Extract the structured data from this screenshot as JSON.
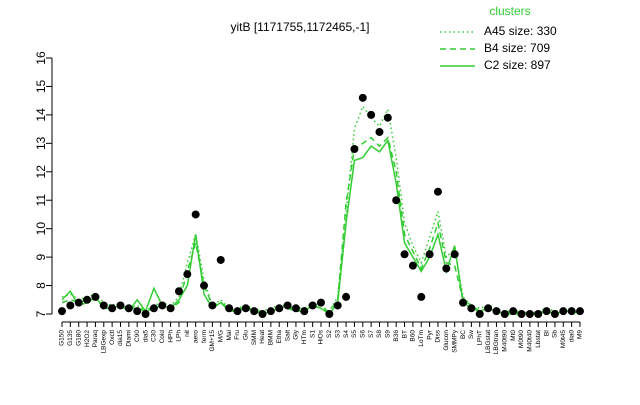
{
  "chart_data": {
    "type": "line",
    "title": "yitB [1171755,1172465,-1]",
    "legend_title": "clusters",
    "legend_position": "top-right",
    "categories": [
      "G150",
      "G135",
      "G180",
      "H2O2",
      "Paraq",
      "LBGexp",
      "Oxctl",
      "dia15",
      "Diami",
      "C90",
      "dia5",
      "C30",
      "Cold",
      "HPh",
      "LPh",
      "nit",
      "aero",
      "ferm",
      "GM+15",
      "M/G",
      "Mal",
      "Fru",
      "Glu",
      "SMM",
      "Heat",
      "BMM",
      "Etha",
      "Salt",
      "Gly",
      "HTm",
      "S1",
      "HiOs",
      "S2",
      "S3",
      "S4",
      "S5",
      "S6",
      "S7",
      "S8",
      "S9",
      "B36",
      "BT",
      "B60",
      "LoTm",
      "Pyr",
      "Diss",
      "Glucon",
      "SMMPy",
      "BC",
      "Sw",
      "LPhT",
      "LBGstat",
      "LBGtran",
      "M40t90",
      "Mt0",
      "M0t90",
      "M40t40",
      "Lbstat",
      "BI",
      "Sb",
      "M0t45",
      "dia0",
      "M9"
    ],
    "series": [
      {
        "name": "A45 size: 330",
        "color": "#33cc33",
        "dash": "dotted",
        "values": [
          7.6,
          7.7,
          7.5,
          7.6,
          7.7,
          7.4,
          7.3,
          7.4,
          7.2,
          7.3,
          7.1,
          7.3,
          7.4,
          7.3,
          7.6,
          8.8,
          9.8,
          8.2,
          7.3,
          7.5,
          7.2,
          7.2,
          7.3,
          7.2,
          7.1,
          7.2,
          7.3,
          7.3,
          7.2,
          7.2,
          7.4,
          7.3,
          7.1,
          7.6,
          10.5,
          13.5,
          14.3,
          13.9,
          13.6,
          14.2,
          12.5,
          10.2,
          9.4,
          8.8,
          9.7,
          10.6,
          9.0,
          9.3,
          7.6,
          7.3,
          7.2,
          7.3,
          7.2,
          7.1,
          7.1,
          7.1,
          7.0,
          7.1,
          7.2,
          7.1,
          7.1,
          7.2,
          7.1
        ]
      },
      {
        "name": "B4 size: 709",
        "color": "#33cc33",
        "dash": "dashed",
        "values": [
          7.4,
          7.5,
          7.4,
          7.5,
          7.5,
          7.3,
          7.3,
          7.3,
          7.2,
          7.2,
          7.1,
          7.2,
          7.3,
          7.2,
          7.4,
          8.5,
          9.5,
          8.0,
          7.3,
          7.4,
          7.2,
          7.1,
          7.2,
          7.1,
          7.1,
          7.1,
          7.2,
          7.2,
          7.1,
          7.1,
          7.3,
          7.2,
          7.1,
          7.5,
          10.9,
          12.8,
          13.0,
          13.2,
          12.9,
          13.2,
          12.0,
          9.8,
          9.2,
          8.6,
          9.3,
          10.2,
          8.8,
          8.7,
          7.5,
          7.3,
          7.1,
          7.2,
          7.1,
          7.1,
          7.0,
          7.1,
          7.0,
          7.1,
          7.1,
          7.1,
          7.1,
          7.1,
          7.1
        ]
      },
      {
        "name": "C2 size: 897",
        "color": "#33cc33",
        "dash": "solid",
        "values": [
          7.5,
          7.8,
          7.3,
          7.4,
          7.6,
          7.2,
          7.2,
          7.3,
          7.1,
          7.5,
          7.1,
          7.9,
          7.3,
          7.2,
          7.5,
          8.0,
          9.8,
          7.7,
          7.2,
          7.4,
          7.1,
          7.1,
          7.3,
          7.1,
          7.0,
          7.1,
          7.2,
          7.3,
          7.1,
          7.1,
          7.3,
          7.2,
          7.0,
          7.4,
          10.2,
          12.4,
          12.5,
          12.9,
          12.7,
          13.1,
          11.6,
          9.5,
          9.0,
          8.5,
          9.0,
          9.8,
          8.5,
          9.4,
          7.4,
          7.2,
          7.1,
          7.2,
          7.1,
          7.0,
          7.0,
          7.0,
          7.0,
          7.0,
          7.1,
          7.0,
          7.1,
          7.1,
          7.0
        ]
      }
    ],
    "points": [
      7.1,
      7.3,
      7.4,
      7.5,
      7.6,
      7.3,
      7.2,
      7.3,
      7.2,
      7.1,
      7.0,
      7.2,
      7.3,
      7.2,
      7.8,
      8.4,
      10.5,
      8.0,
      7.3,
      8.9,
      7.2,
      7.1,
      7.2,
      7.1,
      7.0,
      7.1,
      7.2,
      7.3,
      7.2,
      7.1,
      7.3,
      7.4,
      7.0,
      7.3,
      7.6,
      12.8,
      14.6,
      14.0,
      13.4,
      13.9,
      11.0,
      9.1,
      8.7,
      7.6,
      9.1,
      11.3,
      8.6,
      9.1,
      7.4,
      7.2,
      7.0,
      7.2,
      7.1,
      7.0,
      7.1,
      7.0,
      7.0,
      7.0,
      7.1,
      7.0,
      7.1,
      7.1,
      7.1
    ],
    "points_color": "#000000",
    "ylim": [
      7,
      16
    ],
    "yticks": [
      7,
      8,
      9,
      10,
      11,
      12,
      13,
      14,
      15,
      16
    ]
  }
}
